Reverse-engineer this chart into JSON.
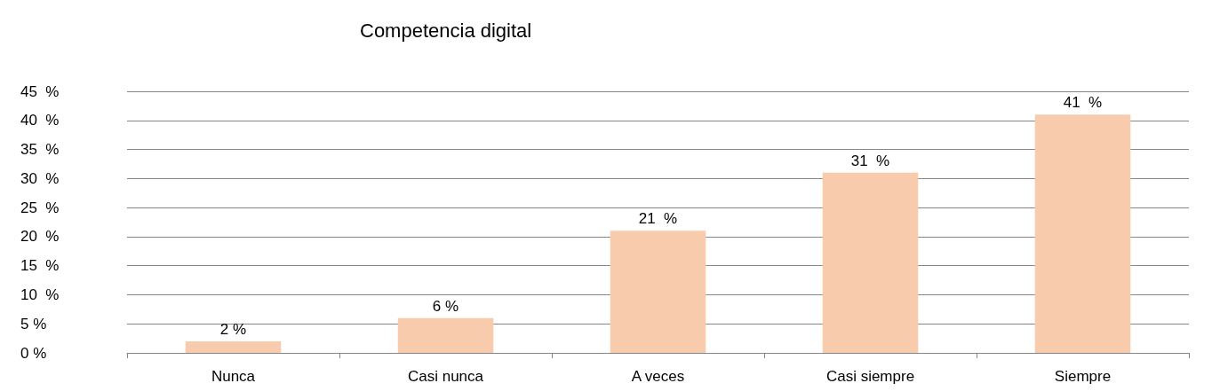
{
  "chart_data": {
    "type": "bar",
    "title": "Competencia digital",
    "categories": [
      "Nunca",
      "Casi nunca",
      "A veces",
      "Casi siempre",
      "Siempre"
    ],
    "values": [
      2,
      6,
      21,
      31,
      41
    ],
    "value_labels": [
      "2 %",
      "6 %",
      "21  %",
      "31  %",
      "41  %"
    ],
    "color": "#f8cbad",
    "ylim": [
      0,
      45
    ],
    "yticks": [
      {
        "value": 0,
        "label": "0 %"
      },
      {
        "value": 5,
        "label": "5 %"
      },
      {
        "value": 10,
        "label": "10  %"
      },
      {
        "value": 15,
        "label": "15  %"
      },
      {
        "value": 20,
        "label": "20  %"
      },
      {
        "value": 25,
        "label": "25  %"
      },
      {
        "value": 30,
        "label": "30  %"
      },
      {
        "value": 35,
        "label": "35  %"
      },
      {
        "value": 40,
        "label": "40  %"
      },
      {
        "value": 45,
        "label": "45  %"
      }
    ],
    "grid": "y"
  }
}
